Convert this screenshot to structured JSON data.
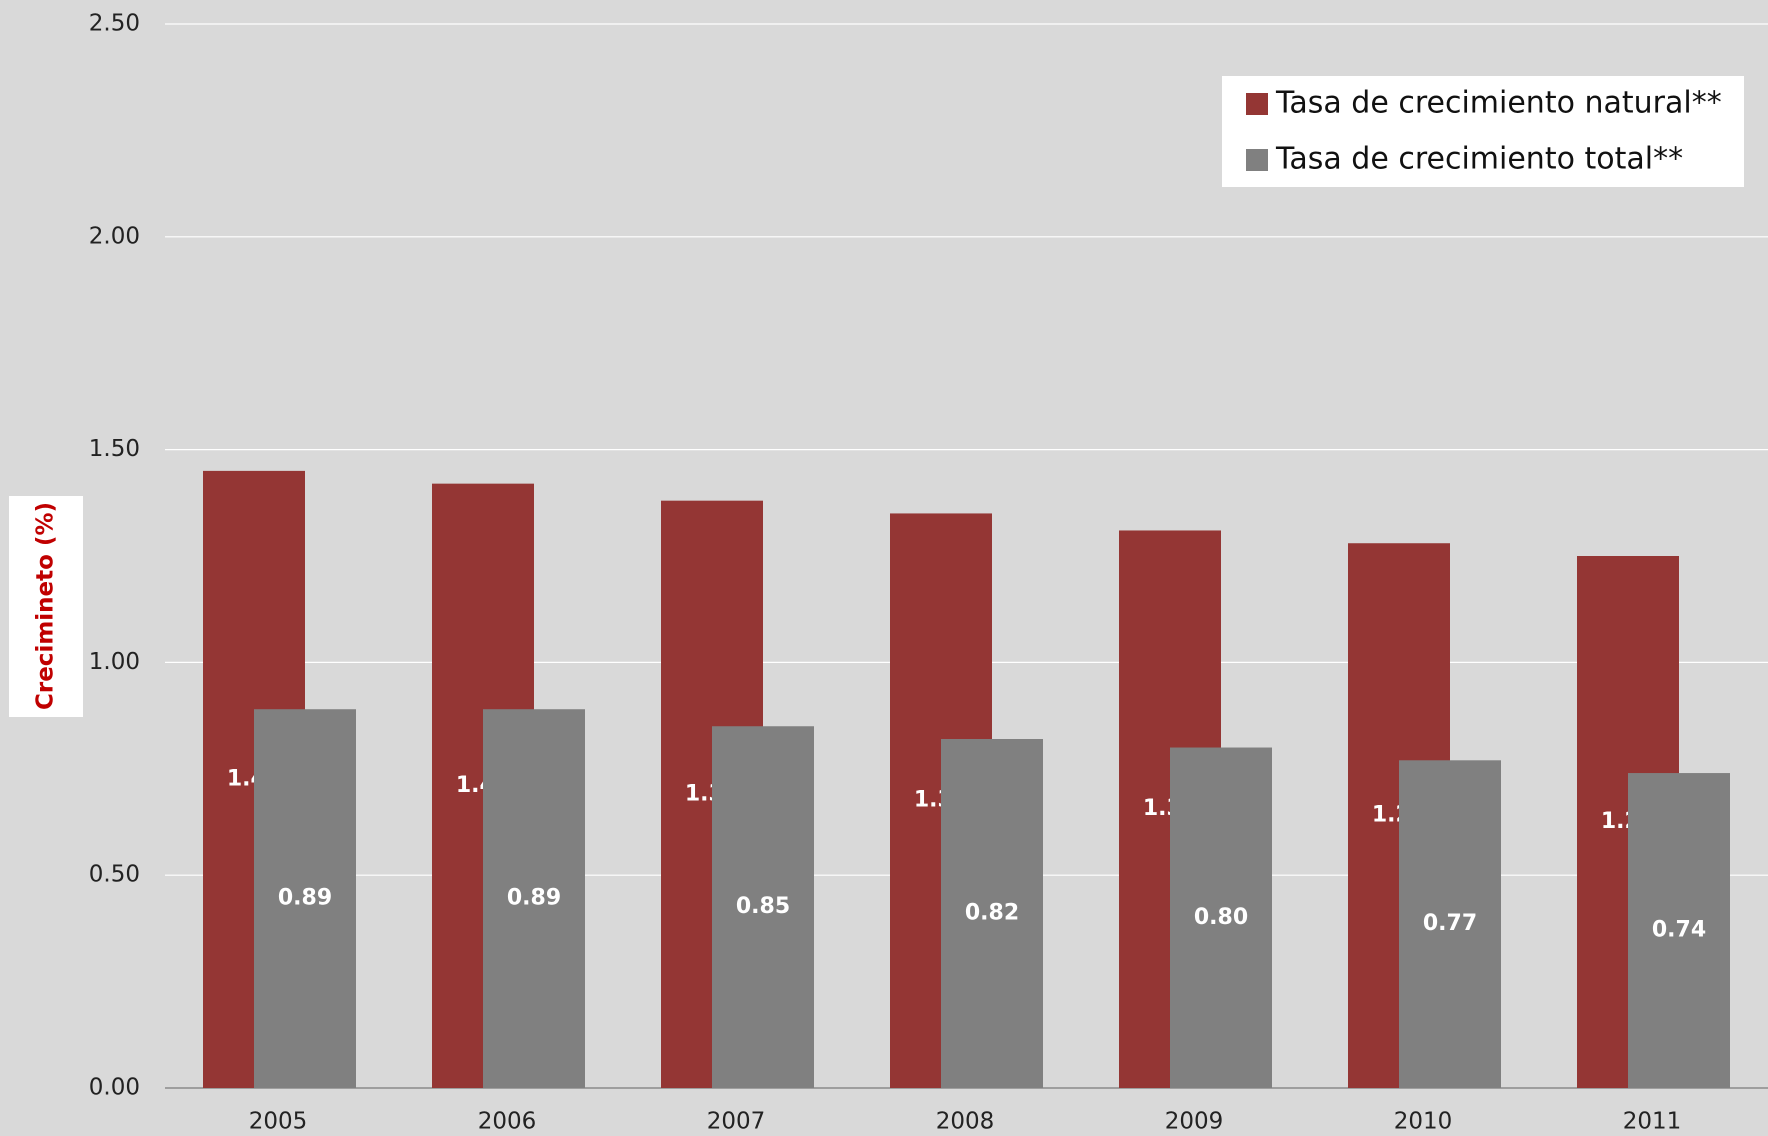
{
  "chart_data": {
    "type": "bar",
    "y_label": "Crecimineto (%)",
    "categories": [
      "2005",
      "2006",
      "2007",
      "2008",
      "2009",
      "2010",
      "2011"
    ],
    "series": [
      {
        "name": "Tasa de crecimiento natural**",
        "color": "#943634",
        "values": [
          1.45,
          1.42,
          1.38,
          1.35,
          1.31,
          1.28,
          1.25
        ],
        "value_labels": [
          "1.45",
          "1.42",
          "1.38",
          "1.35",
          "1.31",
          "1.28",
          "1.25"
        ]
      },
      {
        "name": "Tasa de crecimiento total**",
        "color": "#808080",
        "values": [
          0.89,
          0.89,
          0.85,
          0.82,
          0.8,
          0.77,
          0.74
        ],
        "value_labels": [
          "0.89",
          "0.89",
          "0.85",
          "0.82",
          "0.80",
          "0.77",
          "0.74"
        ]
      }
    ],
    "ylim": [
      0,
      2.5
    ],
    "yticks": [
      {
        "value": 0,
        "label": "0.00"
      },
      {
        "value": 0.5,
        "label": "0.50"
      },
      {
        "value": 1,
        "label": "1.00"
      },
      {
        "value": 1.5,
        "label": "1.50"
      },
      {
        "value": 2,
        "label": "2.00"
      },
      {
        "value": 2.5,
        "label": "2.50"
      }
    ],
    "grid": true,
    "legend": "upper right"
  }
}
